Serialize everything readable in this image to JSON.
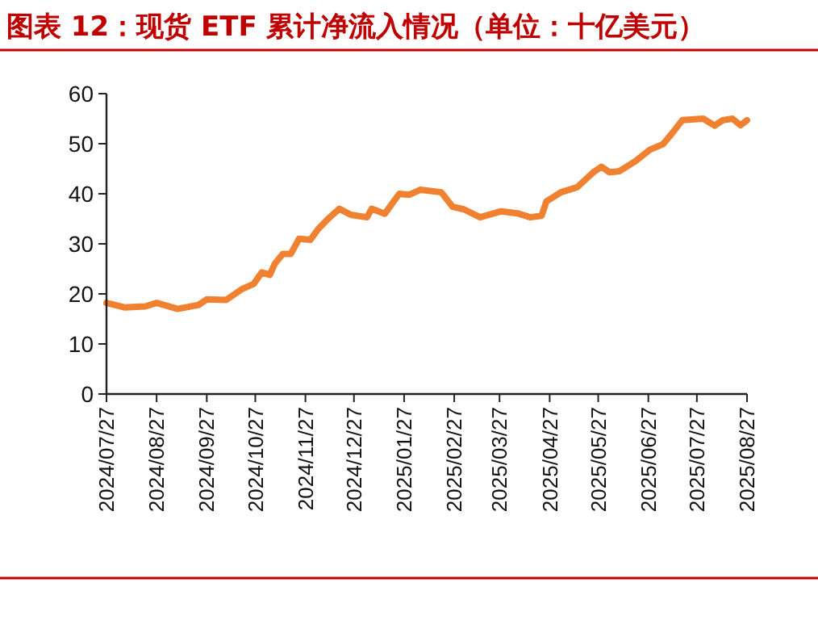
{
  "chart_data": {
    "type": "line",
    "title": "图表 12：现货 ETF 累计净流入情况（单位：十亿美元）",
    "x": [
      "2024-07-27",
      "2024-08-07",
      "2024-08-20",
      "2024-08-27",
      "2024-09-09",
      "2024-09-22",
      "2024-09-27",
      "2024-10-09",
      "2024-10-19",
      "2024-10-26",
      "2024-10-31",
      "2024-11-05",
      "2024-11-08",
      "2024-11-13",
      "2024-11-18",
      "2024-11-23",
      "2024-11-30",
      "2024-12-05",
      "2024-12-11",
      "2024-12-18",
      "2024-12-25",
      "2025-01-04",
      "2025-01-07",
      "2025-01-15",
      "2025-01-24",
      "2025-01-30",
      "2025-02-06",
      "2025-02-19",
      "2025-02-26",
      "2025-03-05",
      "2025-03-15",
      "2025-03-28",
      "2025-04-07",
      "2025-04-15",
      "2025-04-22",
      "2025-04-25",
      "2025-05-04",
      "2025-05-14",
      "2025-05-24",
      "2025-05-29",
      "2025-06-03",
      "2025-06-09",
      "2025-06-19",
      "2025-06-28",
      "2025-07-06",
      "2025-07-11",
      "2025-07-18",
      "2025-07-31",
      "2025-08-07",
      "2025-08-12",
      "2025-08-18",
      "2025-08-23",
      "2025-08-27"
    ],
    "series": [
      {
        "color": "#f08131",
        "values": [
          18.2,
          17.3,
          17.5,
          18.2,
          17,
          17.8,
          18.9,
          18.8,
          21,
          22,
          24.3,
          23.8,
          26,
          28,
          28,
          31,
          30.8,
          33,
          35,
          37,
          35.8,
          35.3,
          37,
          36,
          40,
          39.8,
          40.8,
          40.3,
          37.4,
          36.9,
          35.3,
          36.5,
          36.1,
          35.3,
          35.6,
          38.5,
          40.3,
          41.3,
          44.3,
          45.4,
          44.3,
          44.5,
          46.5,
          48.8,
          49.9,
          51.8,
          54.7,
          55,
          53.6,
          54.7,
          55,
          53.7,
          54.7
        ]
      }
    ],
    "xlim": [
      "2024-07-27",
      "2025-08-27"
    ],
    "xticks": [
      {
        "value": "2024-07-27",
        "label": "2024/07/27"
      },
      {
        "value": "2024-08-27",
        "label": "2024/08/27"
      },
      {
        "value": "2024-09-27",
        "label": "2024/09/27"
      },
      {
        "value": "2024-10-27",
        "label": "2024/10/27"
      },
      {
        "value": "2024-11-27",
        "label": "2024/11/27"
      },
      {
        "value": "2024-12-27",
        "label": "2024/12/27"
      },
      {
        "value": "2025-01-27",
        "label": "2025/01/27"
      },
      {
        "value": "2025-02-27",
        "label": "2025/02/27"
      },
      {
        "value": "2025-03-27",
        "label": "2025/03/27"
      },
      {
        "value": "2025-04-27",
        "label": "2025/04/27"
      },
      {
        "value": "2025-05-27",
        "label": "2025/05/27"
      },
      {
        "value": "2025-06-27",
        "label": "2025/06/27"
      },
      {
        "value": "2025-07-27",
        "label": "2025/07/27"
      },
      {
        "value": "2025-08-27",
        "label": "2025/08/27"
      }
    ],
    "ylim": [
      0,
      60
    ],
    "yticks": [
      0,
      10,
      20,
      30,
      40,
      50,
      60
    ],
    "grid": false,
    "marker": "none",
    "line_style": "solid"
  }
}
